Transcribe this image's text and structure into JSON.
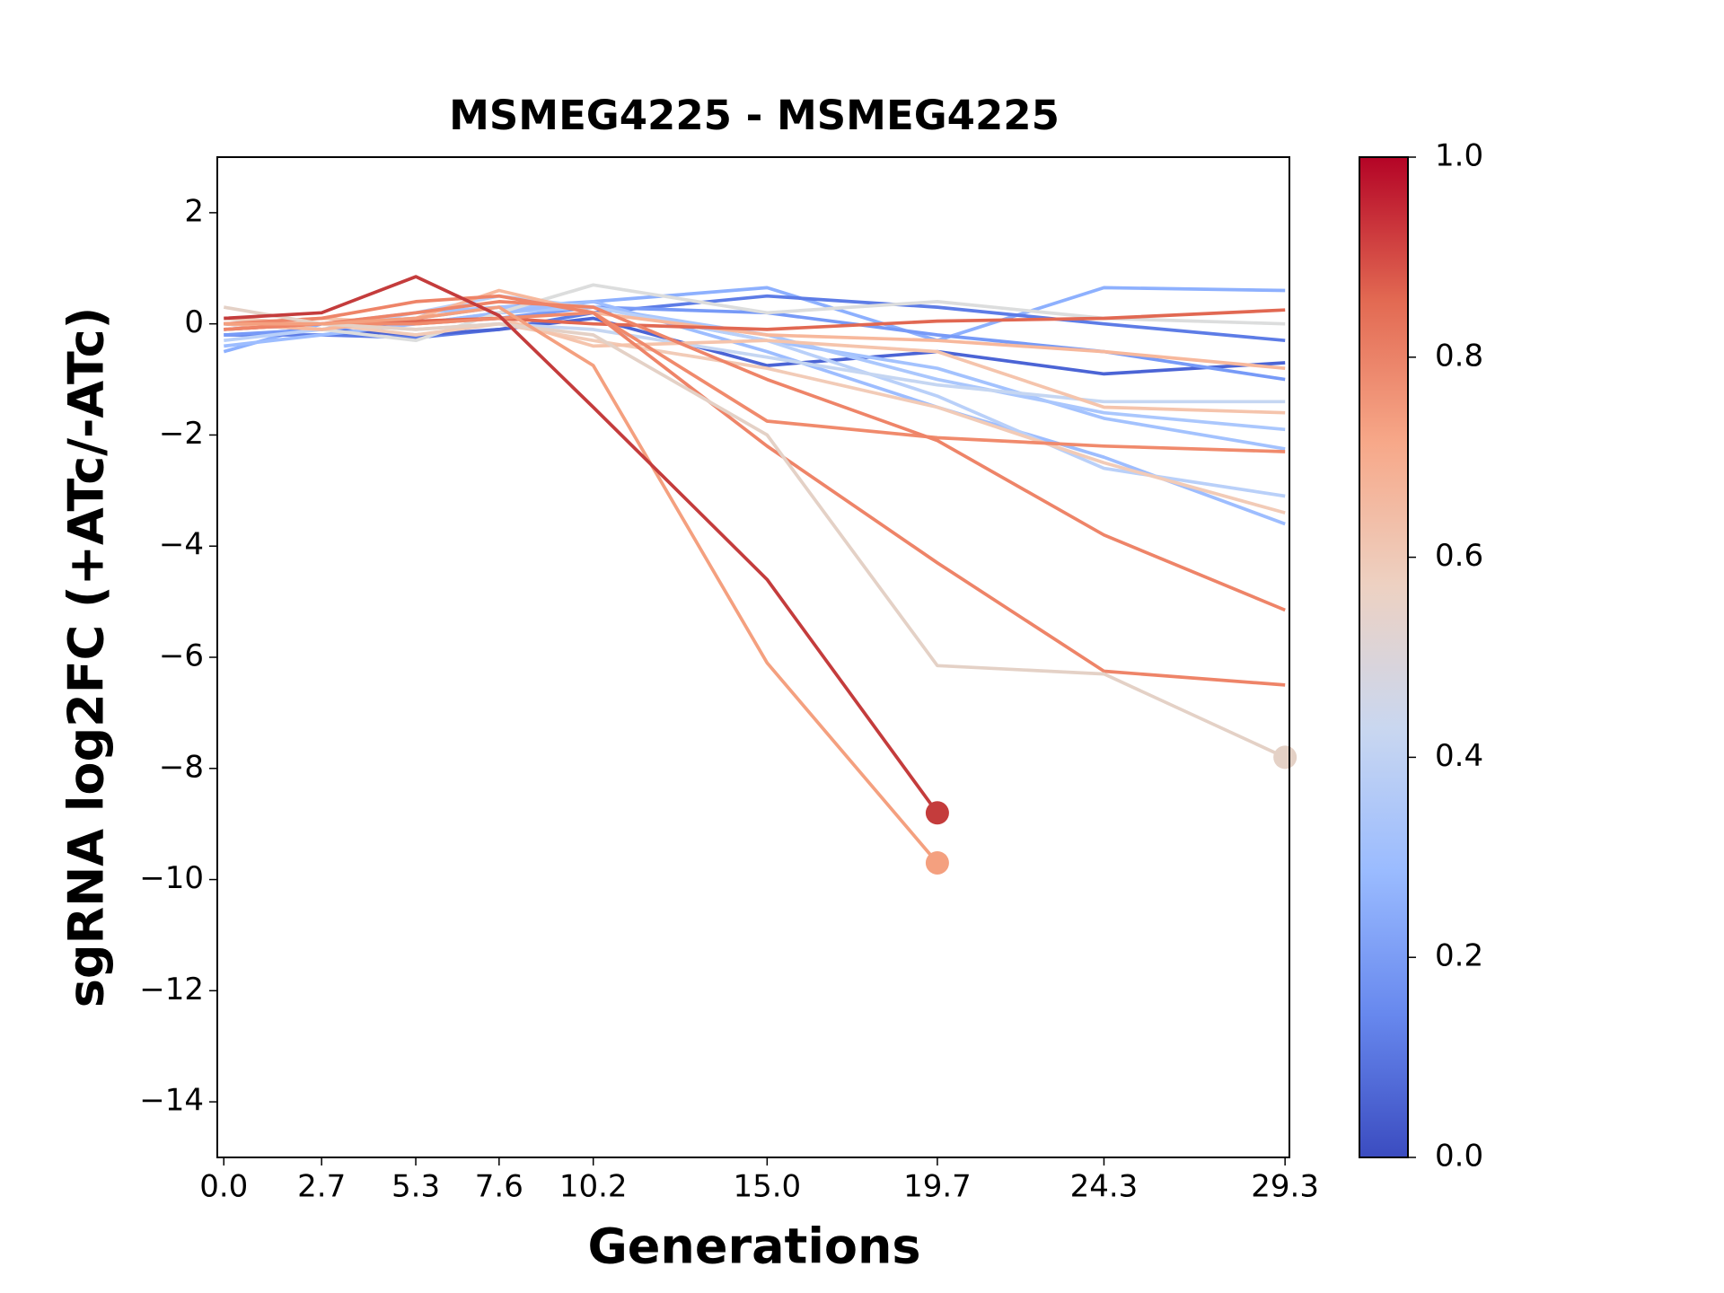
{
  "chart_data": {
    "type": "line",
    "title": "MSMEG4225 - MSMEG4225",
    "xlabel": "Generations",
    "ylabel": "sgRNA log2FC (+ATc/-ATc)",
    "x": [
      0.0,
      2.7,
      5.3,
      7.6,
      10.2,
      15.0,
      19.7,
      24.3,
      29.3
    ],
    "xlim": [
      -0.18,
      29.42
    ],
    "xticks": [
      {
        "value": 0.0,
        "label": "0.0"
      },
      2.7,
      5.3,
      7.6,
      10.2,
      {
        "value": 15.0,
        "label": "15.0"
      },
      19.7,
      24.3,
      29.3
    ],
    "ylim": [
      -15,
      3
    ],
    "yticks": [
      {
        "value": -14,
        "label": "−14"
      },
      {
        "value": -12,
        "label": "−12"
      },
      {
        "value": -10,
        "label": "−10"
      },
      {
        "value": -8,
        "label": "−8"
      },
      {
        "value": -6,
        "label": "−6"
      },
      {
        "value": -4,
        "label": "−4"
      },
      {
        "value": -2,
        "label": "−2"
      },
      0,
      2
    ],
    "series": [
      {
        "color": "#8db0fe",
        "values": [
          -0.5,
          0,
          0.1,
          0.3,
          0.4,
          0.65,
          -0.3,
          0.65,
          0.6
        ]
      },
      {
        "color": "#5d7ce6",
        "values": [
          -0.2,
          -0.2,
          -0.25,
          -0.1,
          0.2,
          0.5,
          0.3,
          0.0,
          -0.3
        ]
      },
      {
        "color": "#4b64d5",
        "values": [
          0.0,
          -0.1,
          -0.2,
          -0.1,
          0.1,
          -0.75,
          -0.5,
          -0.9,
          -0.7
        ]
      },
      {
        "color": "#779af7",
        "values": [
          -0.2,
          -0.1,
          0,
          0.1,
          0.3,
          0.2,
          -0.2,
          -0.5,
          -1.0
        ]
      },
      {
        "color": "#a3c2fe",
        "values": [
          -0.1,
          0,
          0.2,
          0.3,
          0.3,
          -0.3,
          -0.8,
          -1.7,
          -2.25
        ]
      },
      {
        "color": "#aac7fd",
        "values": [
          0,
          0,
          0,
          0.2,
          0.3,
          -0.2,
          -1.0,
          -1.6,
          -1.9
        ]
      },
      {
        "color": "#9dbdff",
        "values": [
          -0.4,
          -0.2,
          0,
          0.2,
          0.4,
          -0.5,
          -1.5,
          -2.4,
          -3.6
        ]
      },
      {
        "color": "#b9d0f9",
        "values": [
          -0.3,
          -0.1,
          0.2,
          0.5,
          0.3,
          -0.3,
          -1.3,
          -2.6,
          -3.1
        ]
      },
      {
        "color": "#c5d6f2",
        "values": [
          0.1,
          0,
          -0.1,
          0,
          -0.1,
          -0.6,
          -1.1,
          -1.4,
          -1.4
        ]
      },
      {
        "color": "#dcdddd",
        "values": [
          0.1,
          -0.1,
          -0.3,
          0.2,
          0.7,
          0.2,
          0.4,
          0.1,
          0.0
        ]
      },
      {
        "color": "#f2cbb7",
        "values": [
          0.1,
          0,
          -0.2,
          0,
          -0.3,
          -0.8,
          -1.5,
          -2.5,
          -3.4
        ]
      },
      {
        "color": "#f5c4ac",
        "values": [
          0,
          0.1,
          0,
          0.1,
          -0.4,
          -0.3,
          -0.5,
          -1.5,
          -1.6
        ]
      },
      {
        "color": "#f7b89c",
        "values": [
          0.0,
          -0.1,
          0.1,
          0.6,
          0.2,
          -0.2,
          -0.3,
          -0.5,
          -0.8
        ]
      },
      {
        "color": "#e16852",
        "values": [
          -0.1,
          0,
          0.05,
          0.1,
          0.0,
          -0.1,
          0.05,
          0.1,
          0.25
        ]
      },
      {
        "color": "#f08a6c",
        "values": [
          0,
          0,
          0,
          0.1,
          0.2,
          -1.75,
          -2.05,
          -2.2,
          -2.3
        ]
      },
      {
        "color": "#ee8468",
        "values": [
          -0.1,
          0,
          0.2,
          0.4,
          0.3,
          -1.0,
          -2.1,
          -3.8,
          -5.15
        ]
      },
      {
        "color": "#ee8468",
        "values": [
          0,
          0.1,
          0.4,
          0.5,
          0.2,
          -2.2,
          -4.3,
          -6.25,
          -6.5
        ]
      },
      {
        "color": "#e4d1c6",
        "values": [
          0.3,
          0,
          -0.1,
          0.0,
          -0.2,
          -2.0,
          -6.15,
          -6.3,
          -7.8
        ],
        "end_marker": true
      },
      {
        "color": "#f4a07f",
        "values": [
          0,
          0.0,
          0.1,
          0.3,
          -0.75,
          -6.1,
          -9.7,
          null,
          null
        ],
        "end_marker": true
      },
      {
        "color": "#c43c3c",
        "values": [
          0.1,
          0.2,
          0.85,
          0.15,
          -1.5,
          -4.6,
          -8.8,
          null,
          null
        ],
        "end_marker": true
      }
    ],
    "colorbar": {
      "lim": [
        0,
        1
      ],
      "ticks": [
        {
          "value": 0.0,
          "label": "0.0"
        },
        0.2,
        0.4,
        0.6,
        0.8,
        {
          "value": 1.0,
          "label": "1.0"
        }
      ],
      "colors": [
        "#3b4cc0",
        "#6788ee",
        "#9abbff",
        "#c9d7f0",
        "#edd1c2",
        "#f7a889",
        "#e26952",
        "#b40426"
      ]
    }
  }
}
